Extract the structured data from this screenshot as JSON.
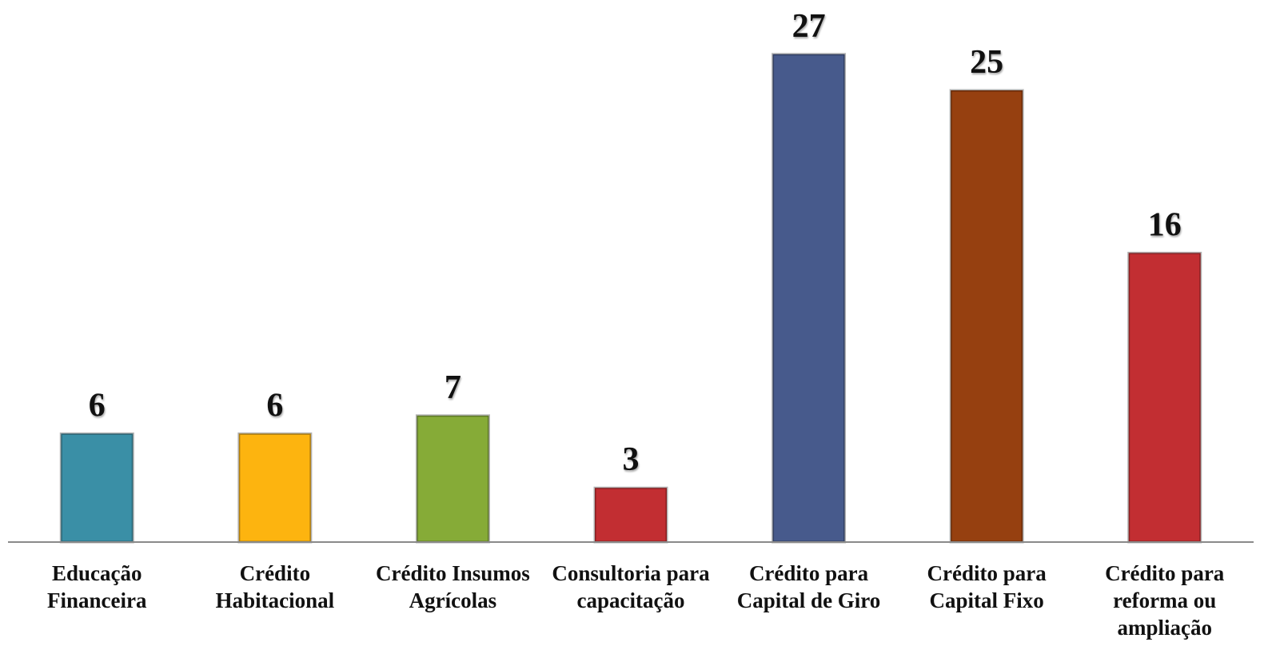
{
  "chart_data": {
    "type": "bar",
    "categories": [
      "Educação Financeira",
      "Crédito Habitacional",
      "Crédito Insumos Agrícolas",
      "Consultoria para capacitação",
      "Crédito para Capital de Giro",
      "Crédito para Capital Fixo",
      "Crédito para reforma ou ampliação"
    ],
    "values": [
      6,
      6,
      7,
      3,
      27,
      25,
      16
    ],
    "colors": [
      "#3a8fa6",
      "#fdb40f",
      "#86ab37",
      "#c22e32",
      "#475a8c",
      "#964010",
      "#c22e32"
    ],
    "ylim": [
      0,
      30
    ]
  }
}
